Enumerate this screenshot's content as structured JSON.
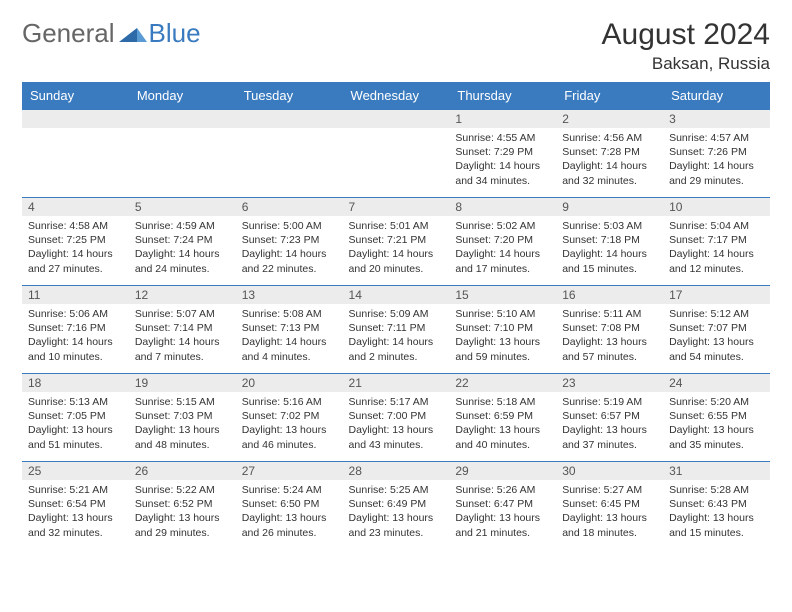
{
  "logo": {
    "part1": "General",
    "part2": "Blue"
  },
  "title": "August 2024",
  "location": "Baksan, Russia",
  "colors": {
    "accent": "#3a7bbf",
    "gray_bg": "#ececec",
    "text": "#333333"
  },
  "day_headers": [
    "Sunday",
    "Monday",
    "Tuesday",
    "Wednesday",
    "Thursday",
    "Friday",
    "Saturday"
  ],
  "weeks": [
    [
      null,
      null,
      null,
      null,
      {
        "n": "1",
        "sr": "Sunrise: 4:55 AM",
        "ss": "Sunset: 7:29 PM",
        "d1": "Daylight: 14 hours",
        "d2": "and 34 minutes."
      },
      {
        "n": "2",
        "sr": "Sunrise: 4:56 AM",
        "ss": "Sunset: 7:28 PM",
        "d1": "Daylight: 14 hours",
        "d2": "and 32 minutes."
      },
      {
        "n": "3",
        "sr": "Sunrise: 4:57 AM",
        "ss": "Sunset: 7:26 PM",
        "d1": "Daylight: 14 hours",
        "d2": "and 29 minutes."
      }
    ],
    [
      {
        "n": "4",
        "sr": "Sunrise: 4:58 AM",
        "ss": "Sunset: 7:25 PM",
        "d1": "Daylight: 14 hours",
        "d2": "and 27 minutes."
      },
      {
        "n": "5",
        "sr": "Sunrise: 4:59 AM",
        "ss": "Sunset: 7:24 PM",
        "d1": "Daylight: 14 hours",
        "d2": "and 24 minutes."
      },
      {
        "n": "6",
        "sr": "Sunrise: 5:00 AM",
        "ss": "Sunset: 7:23 PM",
        "d1": "Daylight: 14 hours",
        "d2": "and 22 minutes."
      },
      {
        "n": "7",
        "sr": "Sunrise: 5:01 AM",
        "ss": "Sunset: 7:21 PM",
        "d1": "Daylight: 14 hours",
        "d2": "and 20 minutes."
      },
      {
        "n": "8",
        "sr": "Sunrise: 5:02 AM",
        "ss": "Sunset: 7:20 PM",
        "d1": "Daylight: 14 hours",
        "d2": "and 17 minutes."
      },
      {
        "n": "9",
        "sr": "Sunrise: 5:03 AM",
        "ss": "Sunset: 7:18 PM",
        "d1": "Daylight: 14 hours",
        "d2": "and 15 minutes."
      },
      {
        "n": "10",
        "sr": "Sunrise: 5:04 AM",
        "ss": "Sunset: 7:17 PM",
        "d1": "Daylight: 14 hours",
        "d2": "and 12 minutes."
      }
    ],
    [
      {
        "n": "11",
        "sr": "Sunrise: 5:06 AM",
        "ss": "Sunset: 7:16 PM",
        "d1": "Daylight: 14 hours",
        "d2": "and 10 minutes."
      },
      {
        "n": "12",
        "sr": "Sunrise: 5:07 AM",
        "ss": "Sunset: 7:14 PM",
        "d1": "Daylight: 14 hours",
        "d2": "and 7 minutes."
      },
      {
        "n": "13",
        "sr": "Sunrise: 5:08 AM",
        "ss": "Sunset: 7:13 PM",
        "d1": "Daylight: 14 hours",
        "d2": "and 4 minutes."
      },
      {
        "n": "14",
        "sr": "Sunrise: 5:09 AM",
        "ss": "Sunset: 7:11 PM",
        "d1": "Daylight: 14 hours",
        "d2": "and 2 minutes."
      },
      {
        "n": "15",
        "sr": "Sunrise: 5:10 AM",
        "ss": "Sunset: 7:10 PM",
        "d1": "Daylight: 13 hours",
        "d2": "and 59 minutes."
      },
      {
        "n": "16",
        "sr": "Sunrise: 5:11 AM",
        "ss": "Sunset: 7:08 PM",
        "d1": "Daylight: 13 hours",
        "d2": "and 57 minutes."
      },
      {
        "n": "17",
        "sr": "Sunrise: 5:12 AM",
        "ss": "Sunset: 7:07 PM",
        "d1": "Daylight: 13 hours",
        "d2": "and 54 minutes."
      }
    ],
    [
      {
        "n": "18",
        "sr": "Sunrise: 5:13 AM",
        "ss": "Sunset: 7:05 PM",
        "d1": "Daylight: 13 hours",
        "d2": "and 51 minutes."
      },
      {
        "n": "19",
        "sr": "Sunrise: 5:15 AM",
        "ss": "Sunset: 7:03 PM",
        "d1": "Daylight: 13 hours",
        "d2": "and 48 minutes."
      },
      {
        "n": "20",
        "sr": "Sunrise: 5:16 AM",
        "ss": "Sunset: 7:02 PM",
        "d1": "Daylight: 13 hours",
        "d2": "and 46 minutes."
      },
      {
        "n": "21",
        "sr": "Sunrise: 5:17 AM",
        "ss": "Sunset: 7:00 PM",
        "d1": "Daylight: 13 hours",
        "d2": "and 43 minutes."
      },
      {
        "n": "22",
        "sr": "Sunrise: 5:18 AM",
        "ss": "Sunset: 6:59 PM",
        "d1": "Daylight: 13 hours",
        "d2": "and 40 minutes."
      },
      {
        "n": "23",
        "sr": "Sunrise: 5:19 AM",
        "ss": "Sunset: 6:57 PM",
        "d1": "Daylight: 13 hours",
        "d2": "and 37 minutes."
      },
      {
        "n": "24",
        "sr": "Sunrise: 5:20 AM",
        "ss": "Sunset: 6:55 PM",
        "d1": "Daylight: 13 hours",
        "d2": "and 35 minutes."
      }
    ],
    [
      {
        "n": "25",
        "sr": "Sunrise: 5:21 AM",
        "ss": "Sunset: 6:54 PM",
        "d1": "Daylight: 13 hours",
        "d2": "and 32 minutes."
      },
      {
        "n": "26",
        "sr": "Sunrise: 5:22 AM",
        "ss": "Sunset: 6:52 PM",
        "d1": "Daylight: 13 hours",
        "d2": "and 29 minutes."
      },
      {
        "n": "27",
        "sr": "Sunrise: 5:24 AM",
        "ss": "Sunset: 6:50 PM",
        "d1": "Daylight: 13 hours",
        "d2": "and 26 minutes."
      },
      {
        "n": "28",
        "sr": "Sunrise: 5:25 AM",
        "ss": "Sunset: 6:49 PM",
        "d1": "Daylight: 13 hours",
        "d2": "and 23 minutes."
      },
      {
        "n": "29",
        "sr": "Sunrise: 5:26 AM",
        "ss": "Sunset: 6:47 PM",
        "d1": "Daylight: 13 hours",
        "d2": "and 21 minutes."
      },
      {
        "n": "30",
        "sr": "Sunrise: 5:27 AM",
        "ss": "Sunset: 6:45 PM",
        "d1": "Daylight: 13 hours",
        "d2": "and 18 minutes."
      },
      {
        "n": "31",
        "sr": "Sunrise: 5:28 AM",
        "ss": "Sunset: 6:43 PM",
        "d1": "Daylight: 13 hours",
        "d2": "and 15 minutes."
      }
    ]
  ]
}
